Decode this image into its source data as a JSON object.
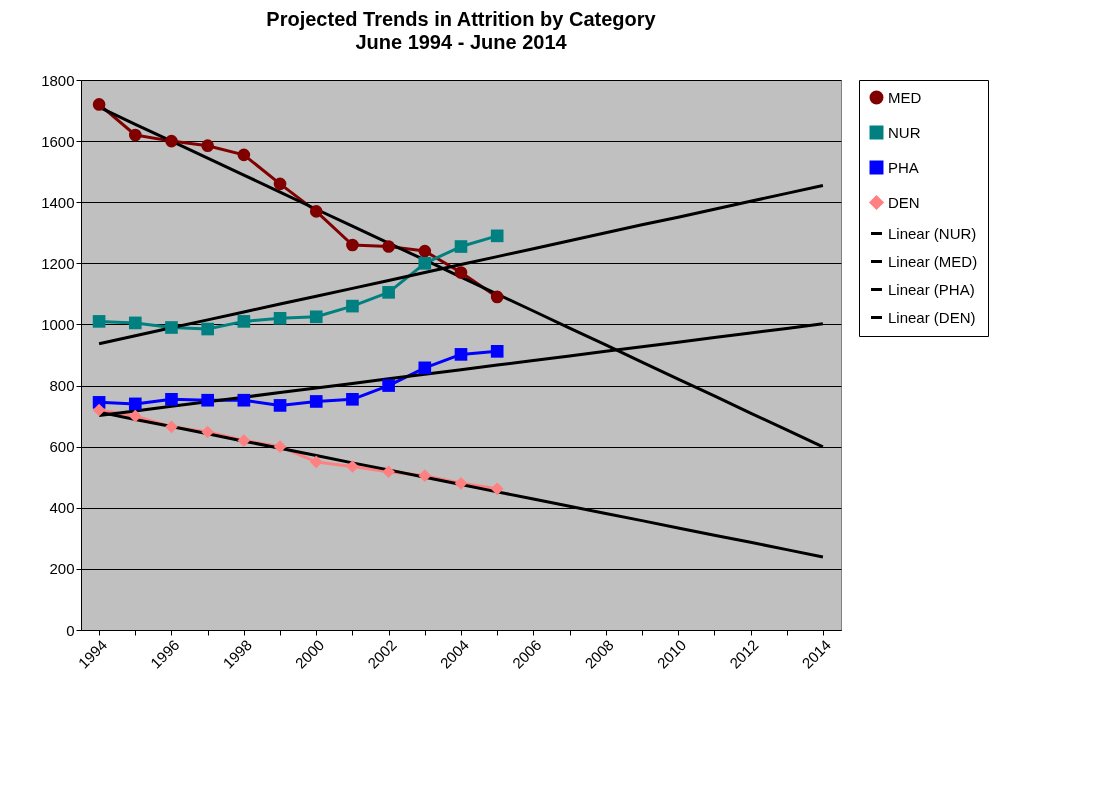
{
  "chart_data": {
    "type": "line",
    "title": "Projected Trends in Attrition by Category",
    "subtitle": "June 1994 - June 2014",
    "categories": [
      "1994",
      null,
      "1996",
      null,
      "1998",
      null,
      "2000",
      null,
      "2002",
      null,
      "2004",
      null,
      "2006",
      null,
      "2008",
      null,
      "2010",
      null,
      "2012",
      null,
      "2014"
    ],
    "ylim": [
      0,
      1800
    ],
    "yticks": [
      0,
      200,
      400,
      600,
      800,
      1000,
      1200,
      1400,
      1600,
      1800
    ],
    "grid": "y",
    "legend": "right",
    "series": [
      {
        "name": "MED",
        "color": "#800000",
        "marker": "circle",
        "values": [
          1720,
          1620,
          1600,
          1585,
          1555,
          1460,
          1370,
          1260,
          1255,
          1240,
          1170,
          1090,
          null,
          null,
          null,
          null,
          null,
          null,
          null,
          null,
          null
        ]
      },
      {
        "name": "NUR",
        "color": "#008080",
        "marker": "square",
        "values": [
          1010,
          1005,
          990,
          985,
          1010,
          1020,
          1025,
          1060,
          1105,
          1200,
          1255,
          1290,
          null,
          null,
          null,
          null,
          null,
          null,
          null,
          null,
          null
        ]
      },
      {
        "name": "PHA",
        "color": "#0000ff",
        "marker": "square",
        "values": [
          745,
          740,
          755,
          752,
          752,
          735,
          748,
          755,
          800,
          858,
          902,
          912,
          null,
          null,
          null,
          null,
          null,
          null,
          null,
          null,
          null
        ]
      },
      {
        "name": "DEN",
        "color": "#ff8080",
        "marker": "diamond",
        "values": [
          720,
          700,
          665,
          648,
          620,
          600,
          550,
          535,
          518,
          505,
          480,
          462,
          null,
          null,
          null,
          null,
          null,
          null,
          null,
          null,
          null
        ]
      },
      {
        "name": "Linear (NUR)",
        "color": "#000000",
        "marker": "none",
        "values": [
          937,
          963,
          989,
          1015,
          1041,
          1067,
          1092,
          1118,
          1144,
          1170,
          1196,
          1222,
          1248,
          1274,
          1300,
          1326,
          1351,
          1377,
          1403,
          1429,
          1455
        ]
      },
      {
        "name": "Linear (MED)",
        "color": "#000000",
        "marker": "none",
        "values": [
          1711,
          1655,
          1600,
          1544,
          1489,
          1433,
          1377,
          1322,
          1266,
          1211,
          1155,
          1099,
          1044,
          988,
          933,
          877,
          821,
          766,
          710,
          655,
          599
        ]
      },
      {
        "name": "Linear (PHA)",
        "color": "#000000",
        "marker": "none",
        "values": [
          702,
          717,
          732,
          747,
          762,
          777,
          792,
          807,
          822,
          837,
          852,
          867,
          882,
          897,
          912,
          927,
          942,
          957,
          972,
          987,
          1002
        ]
      },
      {
        "name": "Linear (DEN)",
        "color": "#000000",
        "marker": "none",
        "values": [
          713,
          689,
          666,
          642,
          618,
          595,
          571,
          547,
          524,
          500,
          476,
          452,
          429,
          405,
          381,
          358,
          334,
          310,
          287,
          263,
          239
        ]
      }
    ]
  }
}
